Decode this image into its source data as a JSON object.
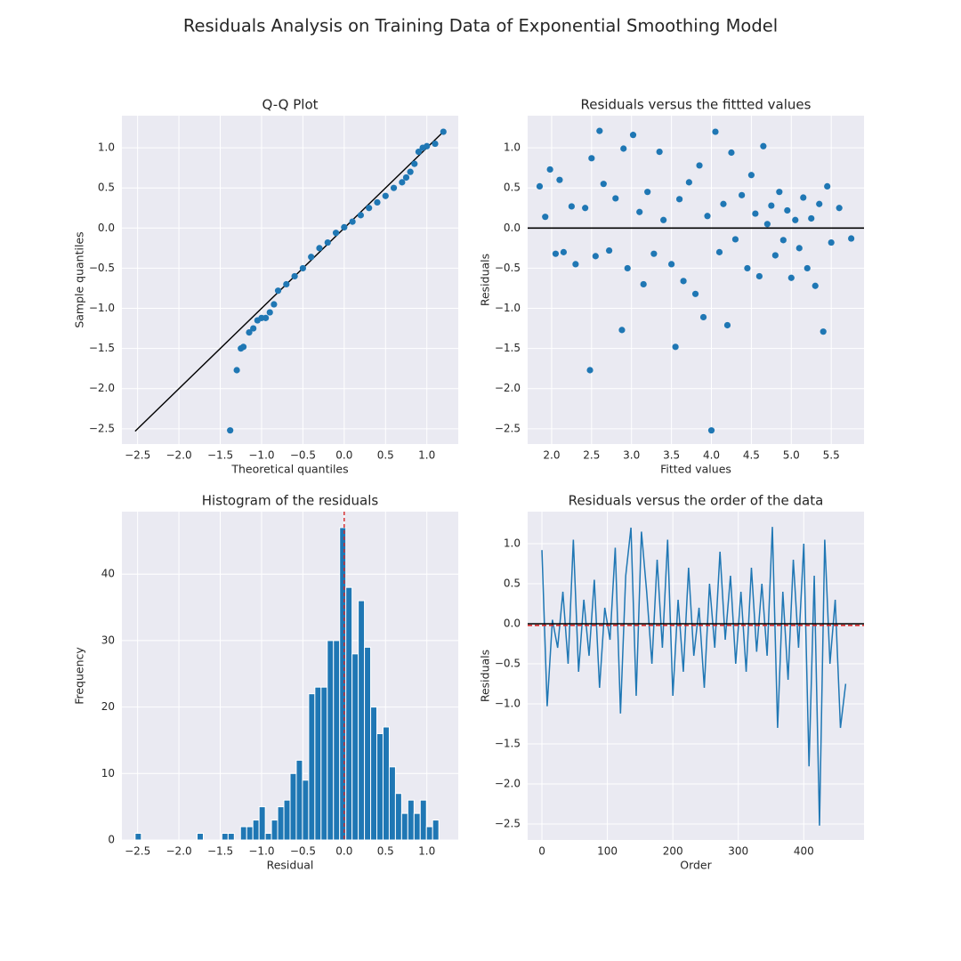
{
  "title": "Residuals Analysis on Training Data of Exponential Smoothing Model",
  "chart_data": [
    {
      "type": "scatter",
      "title": "Q-Q Plot",
      "xlabel": "Theoretical quantiles",
      "ylabel": "Sample quantiles",
      "color": "#1f77b4",
      "grid": true,
      "xlim": [
        -2.69,
        1.38
      ],
      "ylim": [
        -2.69,
        1.4
      ],
      "xticks": [
        {
          "value": -2.5,
          "label": "−2.5"
        },
        {
          "value": -2.0,
          "label": "−2.0"
        },
        {
          "value": -1.5,
          "label": "−1.5"
        },
        {
          "value": -1.0,
          "label": "−1.0"
        },
        {
          "value": -0.5,
          "label": "−0.5"
        },
        {
          "value": 0,
          "label": "0.0"
        },
        0.5,
        {
          "value": 1,
          "label": "1.0"
        }
      ],
      "yticks": [
        {
          "value": -2.5,
          "label": "−2.5"
        },
        {
          "value": -2.0,
          "label": "−2.0"
        },
        {
          "value": -1.5,
          "label": "−1.5"
        },
        {
          "value": -1.0,
          "label": "−1.0"
        },
        {
          "value": -0.5,
          "label": "−0.5"
        },
        {
          "value": 0,
          "label": "0.0"
        },
        0.5,
        {
          "value": 1,
          "label": "1.0"
        }
      ],
      "x": [
        -1.38,
        -1.3,
        -1.25,
        -1.22,
        -1.15,
        -1.1,
        -1.05,
        -1.0,
        -0.95,
        -0.9,
        -0.85,
        -0.8,
        -0.7,
        -0.6,
        -0.5,
        -0.4,
        -0.3,
        -0.2,
        -0.1,
        0,
        0.1,
        0.2,
        0.3,
        0.4,
        0.5,
        0.6,
        0.7,
        0.75,
        0.8,
        0.85,
        0.9,
        0.95,
        1.0,
        1.1,
        1.2
      ],
      "values": [
        -2.52,
        -1.77,
        -1.5,
        -1.48,
        -1.3,
        -1.25,
        -1.15,
        -1.12,
        -1.12,
        -1.05,
        -0.95,
        -0.78,
        -0.7,
        -0.6,
        -0.5,
        -0.36,
        -0.25,
        -0.18,
        -0.06,
        0.01,
        0.08,
        0.16,
        0.25,
        0.32,
        0.4,
        0.5,
        0.57,
        0.63,
        0.7,
        0.8,
        0.95,
        1.0,
        1.02,
        1.05,
        1.2
      ],
      "ref_line": {
        "color": "#000000",
        "x": [
          -2.53,
          1.22
        ],
        "y": [
          -2.53,
          1.22
        ]
      }
    },
    {
      "type": "scatter",
      "title": "Residuals versus the fittted values",
      "xlabel": "Fitted values",
      "ylabel": "Residuals",
      "color": "#1f77b4",
      "grid": true,
      "xlim": [
        1.7,
        5.91
      ],
      "ylim": [
        -2.69,
        1.4
      ],
      "xticks": [
        {
          "value": 2,
          "label": "2.0"
        },
        2.5,
        {
          "value": 3,
          "label": "3.0"
        },
        3.5,
        {
          "value": 4,
          "label": "4.0"
        },
        4.5,
        {
          "value": 5,
          "label": "5.0"
        },
        5.5
      ],
      "yticks": [
        {
          "value": -2.5,
          "label": "−2.5"
        },
        {
          "value": -2.0,
          "label": "−2.0"
        },
        {
          "value": -1.5,
          "label": "−1.5"
        },
        {
          "value": -1.0,
          "label": "−1.0"
        },
        {
          "value": -0.5,
          "label": "−0.5"
        },
        {
          "value": 0,
          "label": "0.0"
        },
        0.5,
        {
          "value": 1,
          "label": "1.0"
        }
      ],
      "x": [
        1.85,
        1.92,
        1.98,
        2.05,
        2.1,
        2.15,
        2.25,
        2.3,
        2.42,
        2.48,
        2.5,
        2.55,
        2.6,
        2.65,
        2.72,
        2.8,
        2.88,
        2.9,
        2.95,
        3.02,
        3.1,
        3.15,
        3.2,
        3.28,
        3.35,
        3.4,
        3.5,
        3.55,
        3.6,
        3.65,
        3.72,
        3.8,
        3.85,
        3.9,
        3.95,
        4.0,
        4.05,
        4.1,
        4.15,
        4.2,
        4.25,
        4.3,
        4.38,
        4.45,
        4.5,
        4.55,
        4.6,
        4.65,
        4.7,
        4.75,
        4.8,
        4.85,
        4.9,
        4.95,
        5.0,
        5.05,
        5.1,
        5.15,
        5.2,
        5.25,
        5.3,
        5.35,
        5.4,
        5.45,
        5.5,
        5.6,
        5.75
      ],
      "values": [
        0.52,
        0.14,
        0.73,
        -0.32,
        0.6,
        -0.3,
        0.27,
        -0.45,
        0.25,
        -1.77,
        0.87,
        -0.35,
        1.21,
        0.55,
        -0.28,
        0.37,
        -1.27,
        0.99,
        -0.5,
        1.16,
        0.2,
        -0.7,
        0.45,
        -0.32,
        0.95,
        0.1,
        -0.45,
        -1.48,
        0.36,
        -0.66,
        0.57,
        -0.82,
        0.78,
        -1.11,
        0.15,
        -2.52,
        1.2,
        -0.3,
        0.3,
        -1.21,
        0.94,
        -0.14,
        0.41,
        -0.5,
        0.66,
        0.18,
        -0.6,
        1.02,
        0.05,
        0.28,
        -0.34,
        0.45,
        -0.15,
        0.22,
        -0.62,
        0.1,
        -0.25,
        0.38,
        -0.5,
        0.12,
        -0.72,
        0.3,
        -1.29,
        0.52,
        -0.18,
        0.25,
        -0.13
      ],
      "hlines": [
        {
          "value": 0,
          "color": "#000000",
          "dashed": false
        }
      ]
    },
    {
      "type": "histogram",
      "title": "Histogram of the residuals",
      "xlabel": "Residual",
      "ylabel": "Frequency",
      "color": "#1f77b4",
      "grid": true,
      "xlim": [
        -2.69,
        1.38
      ],
      "ylim": [
        0,
        49.4
      ],
      "xticks": [
        {
          "value": -2.5,
          "label": "−2.5"
        },
        {
          "value": -2.0,
          "label": "−2.0"
        },
        {
          "value": -1.5,
          "label": "−1.5"
        },
        {
          "value": -1.0,
          "label": "−1.0"
        },
        {
          "value": -0.5,
          "label": "−0.5"
        },
        {
          "value": 0,
          "label": "0.0"
        },
        0.5,
        {
          "value": 1,
          "label": "1.0"
        }
      ],
      "yticks": [
        0,
        10,
        20,
        30,
        40
      ],
      "bins": [
        -2.53,
        -2.455,
        -2.38,
        -2.305,
        -2.23,
        -2.155,
        -2.08,
        -2.005,
        -1.93,
        -1.855,
        -1.78,
        -1.705,
        -1.63,
        -1.555,
        -1.48,
        -1.405,
        -1.33,
        -1.255,
        -1.18,
        -1.105,
        -1.03,
        -0.955,
        -0.88,
        -0.805,
        -0.73,
        -0.655,
        -0.58,
        -0.505,
        -0.43,
        -0.355,
        -0.28,
        -0.205,
        -0.13,
        -0.055,
        0.02,
        0.095,
        0.17,
        0.245,
        0.32,
        0.395,
        0.47,
        0.545,
        0.62,
        0.695,
        0.77,
        0.845,
        0.92,
        0.995,
        1.07,
        1.145,
        1.22
      ],
      "values": [
        1,
        0,
        0,
        0,
        0,
        0,
        0,
        0,
        0,
        0,
        1,
        0,
        0,
        0,
        1,
        1,
        0,
        2,
        2,
        3,
        5,
        1,
        3,
        5,
        6,
        10,
        12,
        9,
        22,
        23,
        23,
        30,
        30,
        47,
        38,
        28,
        36,
        29,
        20,
        16,
        17,
        11,
        7,
        4,
        6,
        4,
        6,
        2,
        3,
        0
      ],
      "vlines": [
        {
          "value": 0,
          "color": "#d62728",
          "dashed": true
        }
      ]
    },
    {
      "type": "line",
      "title": "Residuals versus the order of the data",
      "xlabel": "Order",
      "ylabel": "Residuals",
      "color": "#1f77b4",
      "grid": true,
      "xlim": [
        -21.8,
        492
      ],
      "ylim": [
        -2.7,
        1.4
      ],
      "xticks": [
        0,
        100,
        200,
        300,
        400
      ],
      "yticks": [
        {
          "value": -2.5,
          "label": "−2.5"
        },
        {
          "value": -2.0,
          "label": "−2.0"
        },
        {
          "value": -1.5,
          "label": "−1.5"
        },
        {
          "value": -1.0,
          "label": "−1.0"
        },
        {
          "value": -0.5,
          "label": "−0.5"
        },
        {
          "value": 0,
          "label": "0.0"
        },
        0.5,
        {
          "value": 1,
          "label": "1.0"
        }
      ],
      "x": [
        0,
        8,
        16,
        24,
        32,
        40,
        48,
        56,
        64,
        72,
        80,
        88,
        96,
        104,
        112,
        120,
        128,
        136,
        144,
        152,
        160,
        168,
        176,
        184,
        192,
        200,
        208,
        216,
        224,
        232,
        240,
        248,
        256,
        264,
        272,
        280,
        288,
        296,
        304,
        312,
        320,
        328,
        336,
        344,
        352,
        360,
        368,
        376,
        384,
        392,
        400,
        408,
        416,
        424,
        432,
        440,
        448,
        456,
        464
      ],
      "values": [
        0.92,
        -1.03,
        0.05,
        -0.3,
        0.4,
        -0.5,
        1.05,
        -0.6,
        0.3,
        -0.4,
        0.55,
        -0.8,
        0.2,
        -0.2,
        0.95,
        -1.12,
        0.6,
        1.2,
        -0.9,
        1.15,
        0.4,
        -0.5,
        0.8,
        -0.3,
        1.05,
        -0.9,
        0.3,
        -0.6,
        0.7,
        -0.4,
        0.2,
        -0.8,
        0.5,
        -0.3,
        0.9,
        -0.2,
        0.6,
        -0.5,
        0.4,
        -0.6,
        0.7,
        -0.35,
        0.5,
        -0.4,
        1.21,
        -1.3,
        0.4,
        -0.7,
        0.8,
        -0.3,
        1.0,
        -1.78,
        0.6,
        -2.52,
        1.05,
        -0.5,
        0.3,
        -1.3,
        -0.75
      ],
      "hlines": [
        {
          "value": 0,
          "color": "#000000",
          "dashed": false
        },
        {
          "value": -0.02,
          "color": "#d62728",
          "dashed": true
        }
      ]
    }
  ]
}
